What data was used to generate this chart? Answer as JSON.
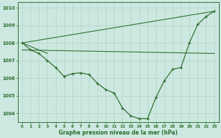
{
  "title": "Graphe pression niveau de la mer (hPa)",
  "bg_color": "#cce8e0",
  "grid_color": "#aacccc",
  "line_color": "#2d6e2d",
  "xlim": [
    -0.5,
    23.5
  ],
  "ylim": [
    1003.5,
    1010.3
  ],
  "yticks": [
    1004,
    1005,
    1006,
    1007,
    1008,
    1009,
    1010
  ],
  "xticks": [
    0,
    1,
    2,
    3,
    4,
    5,
    6,
    7,
    8,
    9,
    10,
    11,
    12,
    13,
    14,
    15,
    16,
    17,
    18,
    19,
    20,
    21,
    22,
    23
  ],
  "series_main": {
    "x": [
      0,
      1,
      2,
      3,
      4,
      5,
      6,
      7,
      8,
      9,
      10,
      11,
      12,
      13,
      14,
      15,
      16,
      17,
      18,
      19,
      20,
      21,
      22,
      23
    ],
    "y": [
      1008.0,
      1007.6,
      1007.4,
      1007.0,
      1006.6,
      1006.1,
      1006.25,
      1006.3,
      1006.2,
      1005.7,
      1005.35,
      1005.15,
      1004.3,
      1003.85,
      1003.7,
      1003.7,
      1004.9,
      1005.85,
      1006.5,
      1006.6,
      1008.0,
      1009.05,
      1009.5,
      1009.8
    ]
  },
  "series_flat": {
    "x": [
      0,
      23
    ],
    "y": [
      1007.6,
      1007.4
    ]
  },
  "series_diag": {
    "x": [
      0,
      23
    ],
    "y": [
      1008.0,
      1009.8
    ]
  },
  "series_short": {
    "x": [
      0,
      3
    ],
    "y": [
      1008.0,
      1007.4
    ]
  }
}
